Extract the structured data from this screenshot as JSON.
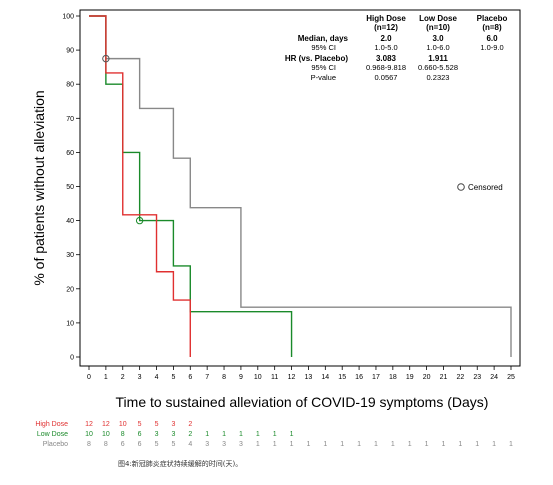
{
  "chart_data": {
    "type": "line",
    "step": true,
    "ylabel": "% of patients without alleviation",
    "xlabel": "Time to sustained alleviation of COVID-19 symptoms (Days)",
    "xlim": [
      0,
      25
    ],
    "ylim": [
      0,
      100
    ],
    "x_ticks": [
      "0",
      "1",
      "2",
      "3",
      "4",
      "5",
      "6",
      "7",
      "8",
      "9",
      "10",
      "11",
      "12",
      "13",
      "14",
      "15",
      "16",
      "17",
      "18",
      "19",
      "20",
      "21",
      "22",
      "23",
      "24",
      "25"
    ],
    "y_ticks": [
      "0",
      "10",
      "20",
      "30",
      "40",
      "50",
      "60",
      "70",
      "80",
      "90",
      "100"
    ],
    "grid": false,
    "series": [
      {
        "name": "High Dose",
        "color": "#e03030",
        "steps": [
          [
            0,
            100
          ],
          [
            1,
            83.3
          ],
          [
            2,
            41.7
          ],
          [
            3,
            41.7
          ],
          [
            4,
            25
          ],
          [
            5,
            16.7
          ],
          [
            6,
            0
          ]
        ],
        "censored": []
      },
      {
        "name": "Low Dose",
        "color": "#1a8a2a",
        "steps": [
          [
            0,
            100
          ],
          [
            1,
            80
          ],
          [
            2,
            60
          ],
          [
            3,
            40
          ],
          [
            5,
            26.7
          ],
          [
            6,
            13.3
          ],
          [
            12,
            0
          ]
        ],
        "censored": [
          [
            3,
            40
          ]
        ]
      },
      {
        "name": "Placebo",
        "color": "#888888",
        "steps": [
          [
            0,
            100
          ],
          [
            1,
            87.5
          ],
          [
            3,
            72.9
          ],
          [
            5,
            58.3
          ],
          [
            6,
            43.8
          ],
          [
            9,
            14.6
          ],
          [
            25,
            0
          ]
        ],
        "censored": [
          [
            1,
            87.5
          ]
        ]
      }
    ],
    "legend": {
      "label": "Censored",
      "placement": "right"
    },
    "stats_table": {
      "columns": [
        {
          "name": "High Dose",
          "n": "(n=12)"
        },
        {
          "name": "Low Dose",
          "n": "(n=10)"
        },
        {
          "name": "Placebo",
          "n": "(n=8)"
        }
      ],
      "rows": [
        {
          "label": "Median, days",
          "bold": true,
          "values": [
            "2.0",
            "3.0",
            "6.0"
          ]
        },
        {
          "label": "95% CI",
          "bold": false,
          "values": [
            "1.0-5.0",
            "1.0-6.0",
            "1.0-9.0"
          ]
        },
        {
          "label": "HR (vs. Placebo)",
          "bold": true,
          "values": [
            "3.083",
            "1.911",
            ""
          ]
        },
        {
          "label": "95% CI",
          "bold": false,
          "values": [
            "0.968-9.818",
            "0.660-5.528",
            ""
          ]
        },
        {
          "label": "P-value",
          "bold": false,
          "values": [
            "0.0567",
            "0.2323",
            ""
          ]
        }
      ]
    },
    "risk_table": {
      "groups": [
        {
          "label": "High Dose",
          "color": "#e03030",
          "counts": [
            "12",
            "12",
            "10",
            "5",
            "5",
            "3",
            "2"
          ]
        },
        {
          "label": "Low Dose",
          "color": "#1a8a2a",
          "counts": [
            "10",
            "10",
            "8",
            "6",
            "3",
            "3",
            "2",
            "1",
            "1",
            "1",
            "1",
            "1",
            "1"
          ]
        },
        {
          "label": "Placebo",
          "color": "#888888",
          "counts": [
            "8",
            "8",
            "6",
            "6",
            "5",
            "5",
            "4",
            "3",
            "3",
            "3",
            "1",
            "1",
            "1",
            "1",
            "1",
            "1",
            "1",
            "1",
            "1",
            "1",
            "1",
            "1",
            "1",
            "1",
            "1",
            "1"
          ]
        }
      ]
    },
    "caption": "图4:新冠肺炎症状持续缓解的时间(天)。"
  }
}
